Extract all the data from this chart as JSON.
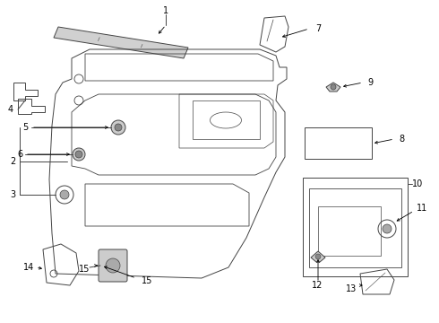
{
  "bg_color": "#ffffff",
  "lc": "#444444",
  "lw": 0.7,
  "figw": 4.9,
  "figh": 3.6,
  "dpi": 100
}
